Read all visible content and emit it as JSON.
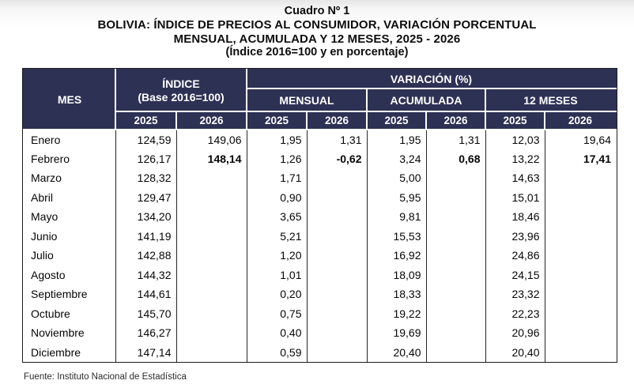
{
  "page": {
    "title_line1": "Cuadro Nº 1",
    "title_line2": "BOLIVIA: ÍNDICE DE PRECIOS AL CONSUMIDOR, VARIACIÓN PORCENTUAL",
    "title_line3": "MENSUAL, ACUMULADA Y 12 MESES, 2025 - 2026",
    "title_line4": "(Índice 2016=100 y en porcentaje)",
    "source_note": "Fuente: Instituto Nacional de Estadística"
  },
  "colors": {
    "header_bg": "#2d3154",
    "header_text": "#ffffff",
    "header_divider": "#ffffff",
    "grid_border": "#242424",
    "body_text": "#060606"
  },
  "table": {
    "header": {
      "mes": "MES",
      "indice_line1": "ÍNDICE",
      "indice_line2": "(Base 2016=100)",
      "variacion": "VARIACIÓN (%)",
      "mensual": "MENSUAL",
      "acumulada": "ACUMULADA",
      "doce_meses": "12 MESES"
    },
    "years": [
      "2025",
      "2026"
    ],
    "columns": [
      "indice-2025",
      "indice-2026",
      "mensual-2025",
      "mensual-2026",
      "acumulada-2025",
      "acumulada-2026",
      "12meses-2025",
      "12meses-2026"
    ],
    "rows": [
      {
        "mes": "Enero",
        "values": [
          "124,59",
          "149,06",
          "1,95",
          "1,31",
          "1,95",
          "1,31",
          "12,03",
          "19,64"
        ],
        "bold": []
      },
      {
        "mes": "Febrero",
        "values": [
          "126,17",
          "148,14",
          "1,26",
          "-0,62",
          "3,24",
          "0,68",
          "13,22",
          "17,41"
        ],
        "bold": [
          1,
          3,
          5,
          7
        ]
      },
      {
        "mes": "Marzo",
        "values": [
          "128,32",
          "",
          "1,71",
          "",
          "5,00",
          "",
          "14,63",
          ""
        ],
        "bold": []
      },
      {
        "mes": "Abril",
        "values": [
          "129,47",
          "",
          "0,90",
          "",
          "5,95",
          "",
          "15,01",
          ""
        ],
        "bold": []
      },
      {
        "mes": "Mayo",
        "values": [
          "134,20",
          "",
          "3,65",
          "",
          "9,81",
          "",
          "18,46",
          ""
        ],
        "bold": []
      },
      {
        "mes": "Junio",
        "values": [
          "141,19",
          "",
          "5,21",
          "",
          "15,53",
          "",
          "23,96",
          ""
        ],
        "bold": []
      },
      {
        "mes": "Julio",
        "values": [
          "142,88",
          "",
          "1,20",
          "",
          "16,92",
          "",
          "24,86",
          ""
        ],
        "bold": []
      },
      {
        "mes": "Agosto",
        "values": [
          "144,32",
          "",
          "1,01",
          "",
          "18,09",
          "",
          "24,15",
          ""
        ],
        "bold": []
      },
      {
        "mes": "Septiembre",
        "values": [
          "144,61",
          "",
          "0,20",
          "",
          "18,33",
          "",
          "23,32",
          ""
        ],
        "bold": []
      },
      {
        "mes": "Octubre",
        "values": [
          "145,70",
          "",
          "0,75",
          "",
          "19,22",
          "",
          "22,23",
          ""
        ],
        "bold": []
      },
      {
        "mes": "Noviembre",
        "values": [
          "146,27",
          "",
          "0,40",
          "",
          "19,69",
          "",
          "20,96",
          ""
        ],
        "bold": []
      },
      {
        "mes": "Diciembre",
        "values": [
          "147,14",
          "",
          "0,59",
          "",
          "20,40",
          "",
          "20,40",
          ""
        ],
        "bold": []
      }
    ]
  }
}
